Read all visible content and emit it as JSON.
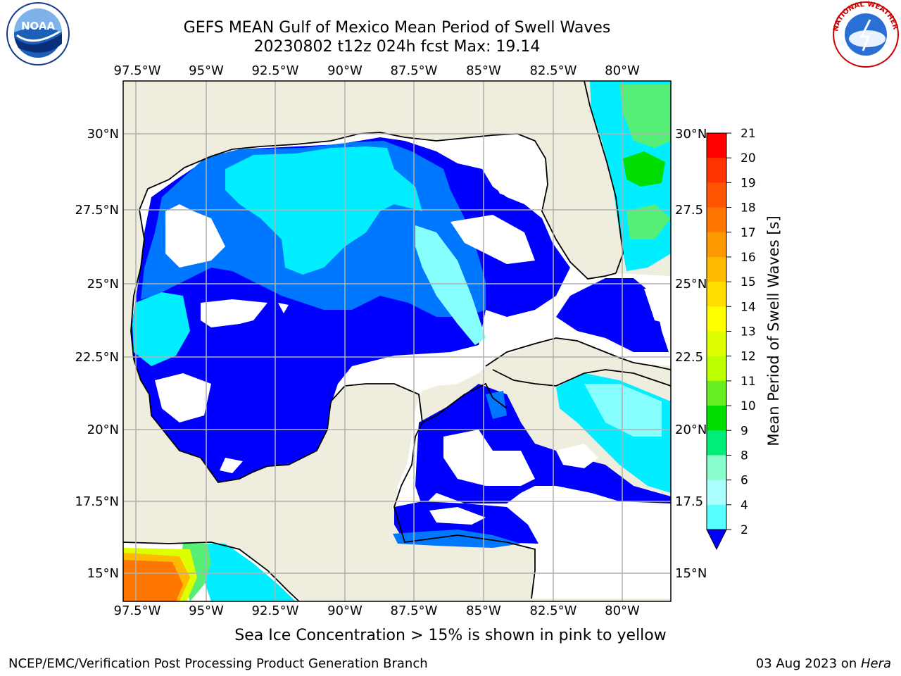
{
  "header": {
    "title_line1": "GEFS MEAN Gulf of Mexico Mean Period of Swell Waves",
    "title_line2": "20230802 t12z 024h fcst   Max: 19.14"
  },
  "logos": {
    "left": "NOAA",
    "right": "NATIONAL WEATHER SERVICE"
  },
  "map": {
    "lon_labels": [
      "97.5°W",
      "95°W",
      "92.5°W",
      "90°W",
      "87.5°W",
      "85°W",
      "82.5°W",
      "80°W"
    ],
    "lat_labels_left": [
      "30°N",
      "27.5°N",
      "25°N",
      "22.5°N",
      "20°N",
      "17.5°N",
      "15°N"
    ],
    "lat_labels_right": [
      "30°N",
      "27.5",
      "25°N",
      "22.5",
      "20°N",
      "17.5",
      "15°N"
    ],
    "land_color": "#efedde",
    "ocean_nodata_color": "#ffffff"
  },
  "colorbar": {
    "label": "Mean Period of Swell Waves [s]",
    "ticks": [
      "21",
      "20",
      "19",
      "18",
      "17",
      "16",
      "15",
      "14",
      "13",
      "12",
      "11",
      "10",
      "9",
      "8",
      "6",
      "4",
      "2"
    ],
    "colors": [
      "#ff0000",
      "#ff3300",
      "#ff5500",
      "#ff7700",
      "#ff9900",
      "#ffbb00",
      "#ffdd00",
      "#ffff00",
      "#ddff00",
      "#bbff00",
      "#66ee22",
      "#00dd00",
      "#00ee77",
      "#88ffcc",
      "#aaffff",
      "#55ffff",
      "#00eeff",
      "#0077ff"
    ],
    "extend_color": "#0000ff"
  },
  "note": "Sea Ice Concentration > 15% is shown in pink to yellow",
  "footer": {
    "left": "NCEP/EMC/Verification Post Processing Product Generation Branch",
    "right_date": "03 Aug 2023 on ",
    "right_host": "Hera"
  }
}
